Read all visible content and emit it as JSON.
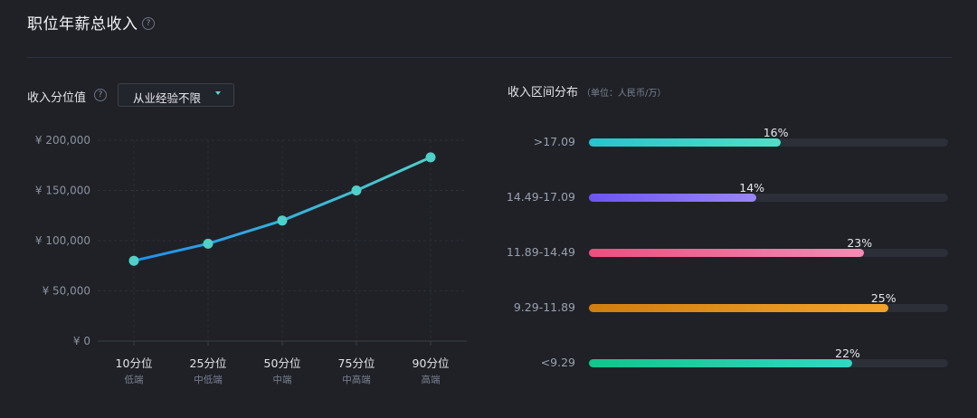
{
  "header": {
    "title": "职位年薪总收入"
  },
  "filter": {
    "label": "收入分位值",
    "dropdown_value": "从业经验不限"
  },
  "distribution": {
    "title": "收入区间分布",
    "unit": "（单位：人民币/万）",
    "rows": [
      {
        "range": ">17.09",
        "pct": 16,
        "pct_label": "16%",
        "color_from": "#27c3cf",
        "color_to": "#4fe0c6"
      },
      {
        "range": "14.49-17.09",
        "pct": 14,
        "pct_label": "14%",
        "color_from": "#6c55f0",
        "color_to": "#9a86f5"
      },
      {
        "range": "11.89-14.49",
        "pct": 23,
        "pct_label": "23%",
        "color_from": "#ef4d7f",
        "color_to": "#f48cb6"
      },
      {
        "range": "9.29-11.89",
        "pct": 25,
        "pct_label": "25%",
        "color_from": "#d07e0f",
        "color_to": "#f2a32b"
      },
      {
        "range": "<9.29",
        "pct": 22,
        "pct_label": "22%",
        "color_from": "#13c48b",
        "color_to": "#33d6c2"
      }
    ]
  },
  "chart_data": [
    {
      "type": "line",
      "categories": [
        "10分位",
        "25分位",
        "50分位",
        "75分位",
        "90分位"
      ],
      "category_sublabels": [
        "低端",
        "中低端",
        "中端",
        "中高端",
        "高端"
      ],
      "values": [
        80000,
        97000,
        120000,
        150000,
        183000
      ],
      "y_ticks": [
        0,
        50000,
        100000,
        150000,
        200000
      ],
      "y_tick_labels": [
        "¥ 0",
        "¥ 50,000",
        "¥ 100,000",
        "¥ 150,000",
        "¥ 200,000"
      ],
      "ylim": [
        0,
        200000
      ],
      "line_color_from": "#1d90ee",
      "line_color_to": "#4fd0c8",
      "marker_color": "#4fd0c8",
      "grid": true
    },
    {
      "type": "bar",
      "orientation": "horizontal",
      "categories": [
        ">17.09",
        "14.49-17.09",
        "11.89-14.49",
        "9.29-11.89",
        "<9.29"
      ],
      "values": [
        16,
        14,
        23,
        25,
        22
      ],
      "unit": "%",
      "xlim": [
        0,
        30
      ]
    }
  ]
}
